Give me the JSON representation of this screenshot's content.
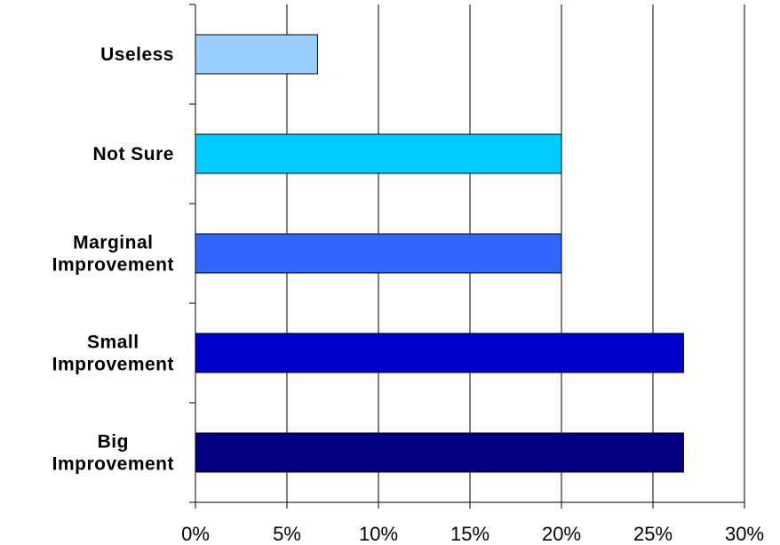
{
  "chart_data": {
    "type": "bar",
    "orientation": "horizontal",
    "categories": [
      [
        "Useless"
      ],
      [
        "Not Sure"
      ],
      [
        "Marginal",
        "Improvement"
      ],
      [
        "Small",
        "Improvement"
      ],
      [
        "Big",
        "Improvement"
      ]
    ],
    "values": [
      6.67,
      20,
      20,
      26.67,
      26.67
    ],
    "colors": [
      "#99CCFF",
      "#00CCFF",
      "#3366FF",
      "#0000CC",
      "#000080"
    ],
    "xlim": [
      0,
      30
    ],
    "xticks": [
      0,
      5,
      10,
      15,
      20,
      25,
      30
    ],
    "xtick_labels": [
      "0%",
      "5%",
      "10%",
      "15%",
      "20%",
      "25%",
      "30%"
    ],
    "grid": "vertical",
    "legend": "none",
    "title": "",
    "xlabel": "",
    "ylabel": ""
  }
}
